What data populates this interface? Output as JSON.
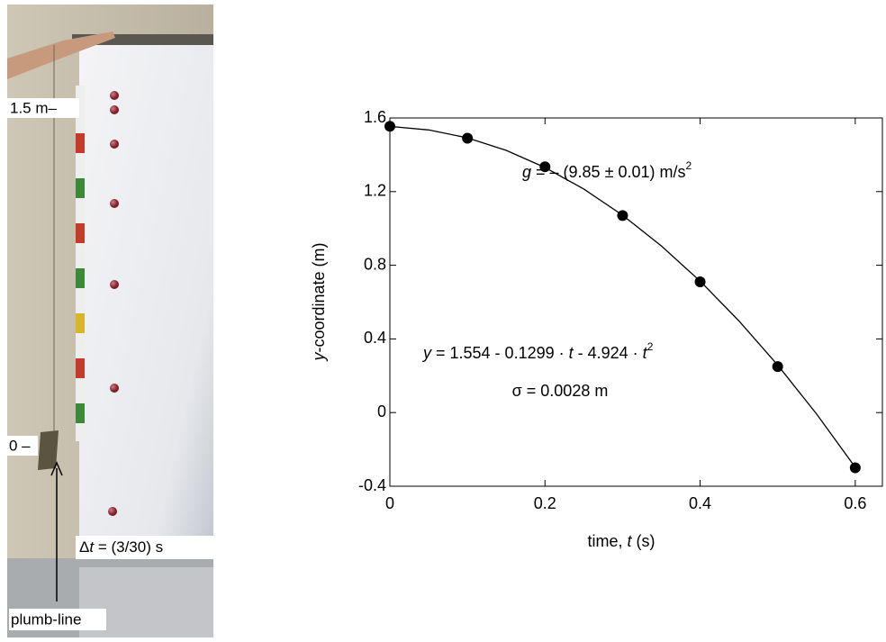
{
  "photo": {
    "label_top": "1.5 m–",
    "label_zero": "0 –",
    "interval": [
      "Δ",
      "t",
      " = (3/30) s"
    ],
    "plumb": "plumb-line"
  },
  "chart_data": {
    "type": "scatter",
    "x_label": [
      "time, ",
      "t",
      " (s)"
    ],
    "y_label": [
      "y",
      "-coordinate (m)"
    ],
    "annotation_g": [
      "g",
      " = – (9.85 ± 0.01) m/s",
      "2"
    ],
    "annotation_fit": [
      "y",
      " = 1.554 - 0.1299 · ",
      "t",
      " - 4.924 · ",
      "t",
      "2"
    ],
    "annotation_sigma": "σ = 0.0028 m",
    "xlim": [
      0,
      0.635
    ],
    "ylim": [
      -0.4,
      1.6
    ],
    "xticks": [
      0,
      0.2,
      0.4,
      0.6
    ],
    "yticks": [
      -0.4,
      0,
      0.4,
      0.8,
      1.2,
      1.6
    ],
    "series": [
      {
        "mode": "markers",
        "color": "#000000",
        "x": [
          0,
          0.1,
          0.2,
          0.3,
          0.4,
          0.5,
          0.6
        ],
        "values": [
          1.555,
          1.49,
          1.335,
          1.07,
          0.71,
          0.25,
          -0.3
        ]
      },
      {
        "mode": "line",
        "color": "#000000",
        "x": [
          0,
          0.05,
          0.1,
          0.15,
          0.2,
          0.25,
          0.3,
          0.35,
          0.4,
          0.45,
          0.5,
          0.55,
          0.6
        ],
        "values": [
          1.554,
          1.535,
          1.492,
          1.424,
          1.331,
          1.214,
          1.072,
          0.905,
          0.714,
          0.498,
          0.258,
          -0.007,
          -0.297
        ]
      }
    ]
  }
}
